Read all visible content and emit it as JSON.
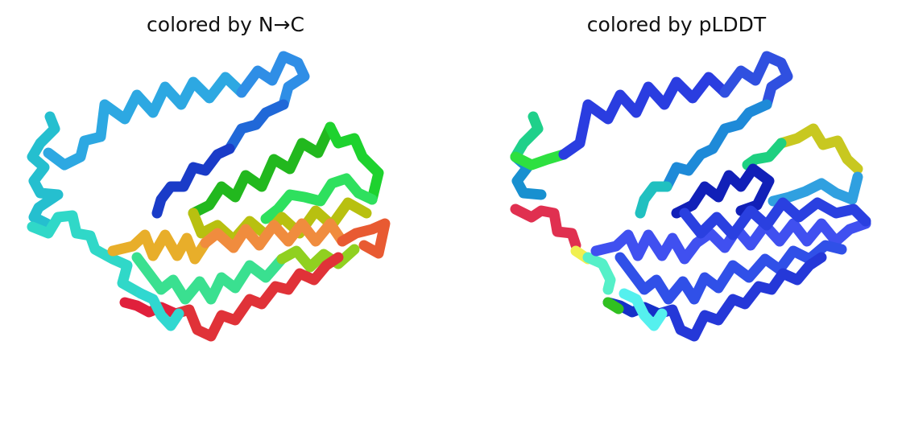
{
  "panels": [
    {
      "title": "colored by N→C",
      "coloring": "chain position N-terminus to C-terminus",
      "palette": [
        "#29c7d3",
        "#2fa7e4",
        "#2560d8",
        "#1830c8",
        "#22b61e",
        "#1fcf2a",
        "#2fe070",
        "#55f3cc",
        "#e8b020",
        "#f08a3c",
        "#e04a2a",
        "#e0203c"
      ]
    },
    {
      "title": "colored by pLDDT",
      "coloring": "pLDDT confidence",
      "palette": [
        "#1fd08a",
        "#1890d0",
        "#2a3de0",
        "#1120b8",
        "#4050f0",
        "#d4c020",
        "#e03050",
        "#f0f050",
        "#55ffee",
        "#20b0b8"
      ]
    }
  ]
}
